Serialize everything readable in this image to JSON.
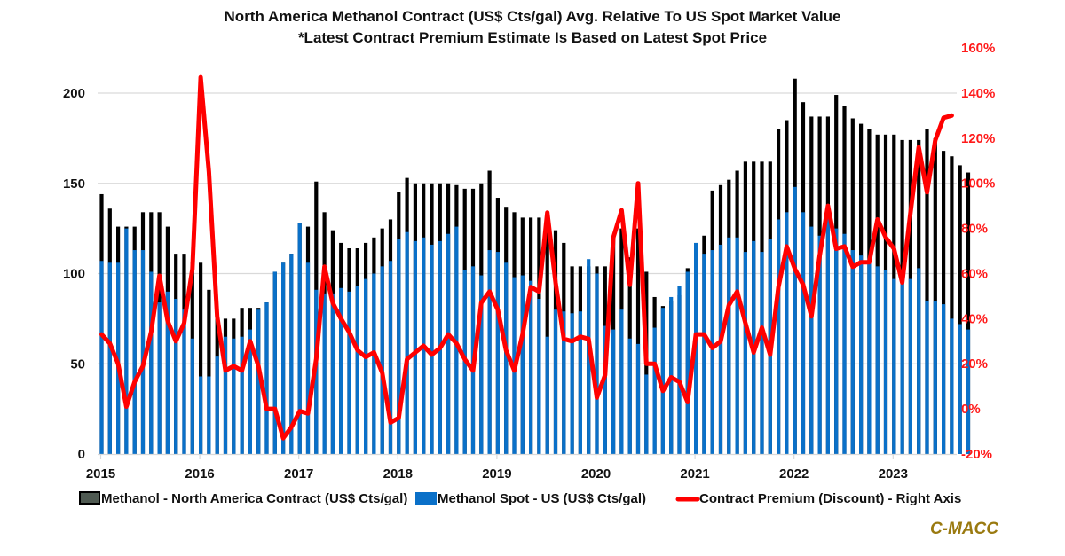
{
  "chart_data": {
    "type": "bar",
    "title": "North America Methanol Contract (US$ Cts/gal) Avg. Relative To US Spot Market Value",
    "subtitle": "*Latest Contract Premium Estimate Is Based on Latest Spot Price",
    "x_start": "2015-01",
    "frequency": "monthly",
    "x_tick_labels": [
      "2015",
      "2016",
      "2017",
      "2018",
      "2019",
      "2020",
      "2021",
      "2022",
      "2023"
    ],
    "left_axis": {
      "ticks": [
        0,
        50,
        100,
        150,
        200
      ],
      "range": [
        0,
        210
      ],
      "grid": true
    },
    "right_axis": {
      "ticks": [
        "-20%",
        "0%",
        "20%",
        "40%",
        "60%",
        "80%",
        "100%",
        "120%",
        "140%",
        "160%"
      ],
      "range": [
        -20,
        160
      ],
      "unit": "%"
    },
    "series": [
      {
        "name": "Methanol - North America Contract (US$ Cts/gal)",
        "type": "bar",
        "axis": "left",
        "color": "#000000",
        "values": [
          144,
          136,
          126,
          126,
          126,
          134,
          134,
          134,
          126,
          111,
          111,
          106,
          106,
          91,
          75,
          75,
          75,
          81,
          81,
          81,
          84,
          101,
          106,
          111,
          128,
          126,
          151,
          134,
          124,
          117,
          114,
          114,
          117,
          120,
          125,
          130,
          145,
          153,
          150,
          150,
          150,
          150,
          150,
          149,
          147,
          147,
          150,
          157,
          142,
          137,
          134,
          131,
          131,
          131,
          131,
          124,
          117,
          104,
          104,
          104,
          104,
          104,
          120,
          125,
          109,
          125,
          101,
          87,
          82,
          85,
          88,
          103,
          113,
          121,
          146,
          149,
          152,
          157,
          162,
          162,
          162,
          162,
          180,
          185,
          208,
          195,
          187,
          187,
          187,
          199,
          193,
          186,
          183,
          180,
          177,
          177,
          177,
          174,
          174,
          174,
          180,
          175,
          168,
          165,
          160,
          156
        ]
      },
      {
        "name": "Methanol Spot - US (US$ Cts/gal)",
        "type": "bar",
        "axis": "left",
        "color": "#0a70c8",
        "values": [
          107,
          106,
          106,
          125,
          113,
          113,
          101,
          84,
          90,
          86,
          80,
          64,
          43,
          43,
          54,
          65,
          64,
          65,
          69,
          80,
          84,
          101,
          106,
          111,
          128,
          106,
          91,
          89,
          89,
          92,
          90,
          93,
          97,
          100,
          104,
          107,
          119,
          123,
          118,
          120,
          116,
          118,
          122,
          126,
          102,
          104,
          99,
          113,
          112,
          106,
          98,
          99,
          96,
          86,
          65,
          80,
          79,
          78,
          79,
          108,
          100,
          71,
          69,
          80,
          64,
          61,
          44,
          70,
          81,
          87,
          93,
          101,
          117,
          111,
          113,
          116,
          120,
          120,
          112,
          118,
          112,
          119,
          130,
          134,
          148,
          134,
          126,
          121,
          133,
          125,
          122,
          113,
          110,
          107,
          104,
          102,
          97,
          100,
          97,
          103,
          85,
          85,
          83,
          75,
          72,
          69
        ]
      },
      {
        "name": "Contract Premium (Discount) - Right Axis",
        "type": "line",
        "axis": "right",
        "color": "#ff0000",
        "values": [
          33,
          29,
          20,
          1,
          12,
          19,
          34,
          59,
          39,
          30,
          38,
          62,
          147,
          105,
          41,
          17,
          19,
          17,
          30,
          19,
          0,
          0,
          -13,
          -8,
          -1,
          -2,
          22,
          63,
          47,
          40,
          34,
          26,
          23,
          25,
          16,
          -6,
          -4,
          22,
          25,
          28,
          24,
          27,
          33,
          29,
          22,
          17,
          47,
          52,
          44,
          26,
          17,
          33,
          54,
          52,
          87,
          56,
          31,
          30,
          32,
          31,
          5,
          15,
          76,
          88,
          55,
          100,
          20,
          20,
          8,
          14,
          12,
          3,
          33,
          33,
          27,
          30,
          46,
          52,
          38,
          25,
          36,
          24,
          54,
          72,
          62,
          55,
          41,
          68,
          90,
          71,
          72,
          63,
          65,
          65,
          84,
          76,
          71,
          56,
          87,
          116,
          96,
          119,
          129,
          130
        ]
      }
    ],
    "legend": {
      "placement": "bottom",
      "entries": [
        {
          "label": "Methanol - North America Contract (US$ Cts/gal)",
          "symbol": "bar",
          "color": "#000000"
        },
        {
          "label": "Methanol Spot - US (US$ Cts/gal)",
          "symbol": "bar",
          "color": "#0a70c8"
        },
        {
          "label": "Contract Premium (Discount) - Right Axis",
          "symbol": "line",
          "color": "#ff0000"
        }
      ]
    },
    "source_brand": "C-MACC"
  }
}
